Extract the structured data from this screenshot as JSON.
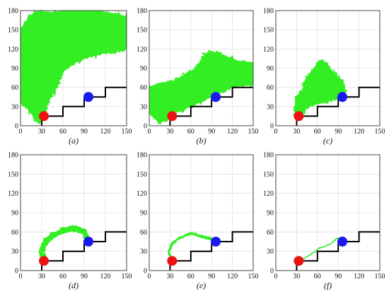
{
  "figure": {
    "colors": {
      "exploration": "#33ee22",
      "path": "#33ee22",
      "start": "#ee1111",
      "goal": "#1a1aee",
      "obstacle": "#000000",
      "frame": "#333333",
      "grid": "#d8d8d8"
    }
  },
  "chart_data": [
    {
      "type": "scatter",
      "label": "(a)",
      "xlim": [
        0,
        150
      ],
      "ylim": [
        0,
        180
      ],
      "xticks": [
        0,
        30,
        60,
        90,
        120,
        150
      ],
      "yticks": [
        0,
        30,
        60,
        90,
        120,
        150,
        180
      ],
      "grid": true,
      "start": [
        33,
        15
      ],
      "goal": [
        96,
        45
      ],
      "obstacle": [
        [
          30,
          0
        ],
        [
          30,
          15
        ],
        [
          60,
          15
        ],
        [
          60,
          30
        ],
        [
          90,
          30
        ],
        [
          90,
          45
        ],
        [
          120,
          45
        ],
        [
          120,
          60
        ],
        [
          150,
          60
        ]
      ],
      "exploration": {
        "kind": "region",
        "coverage": "extensive",
        "outline": [
          [
            33,
            15
          ],
          [
            25,
            5
          ],
          [
            12,
            25
          ],
          [
            0,
            40
          ],
          [
            0,
            150
          ],
          [
            10,
            165
          ],
          [
            22,
            178
          ],
          [
            40,
            176
          ],
          [
            70,
            180
          ],
          [
            100,
            180
          ],
          [
            130,
            175
          ],
          [
            150,
            170
          ],
          [
            150,
            120
          ],
          [
            140,
            118
          ],
          [
            120,
            115
          ],
          [
            95,
            108
          ],
          [
            75,
            98
          ],
          [
            60,
            85
          ],
          [
            52,
            65
          ],
          [
            40,
            40
          ],
          [
            33,
            25
          ]
        ]
      }
    },
    {
      "type": "scatter",
      "label": "(b)",
      "xlim": [
        0,
        150
      ],
      "ylim": [
        0,
        180
      ],
      "xticks": [
        0,
        30,
        60,
        90,
        120,
        150
      ],
      "yticks": [
        0,
        30,
        60,
        90,
        120,
        150,
        180
      ],
      "grid": true,
      "start": [
        33,
        15
      ],
      "goal": [
        96,
        45
      ],
      "obstacle": [
        [
          30,
          0
        ],
        [
          30,
          15
        ],
        [
          60,
          15
        ],
        [
          60,
          30
        ],
        [
          90,
          30
        ],
        [
          90,
          45
        ],
        [
          120,
          45
        ],
        [
          120,
          60
        ],
        [
          150,
          60
        ]
      ],
      "exploration": {
        "kind": "region",
        "coverage": "moderate",
        "outline": [
          [
            33,
            15
          ],
          [
            15,
            5
          ],
          [
            0,
            20
          ],
          [
            0,
            60
          ],
          [
            20,
            65
          ],
          [
            40,
            70
          ],
          [
            55,
            80
          ],
          [
            68,
            90
          ],
          [
            80,
            110
          ],
          [
            92,
            115
          ],
          [
            110,
            108
          ],
          [
            130,
            100
          ],
          [
            150,
            98
          ],
          [
            150,
            65
          ],
          [
            122,
            62
          ],
          [
            92,
            47
          ],
          [
            62,
            32
          ],
          [
            32,
            18
          ]
        ]
      }
    },
    {
      "type": "scatter",
      "label": "(c)",
      "xlim": [
        0,
        150
      ],
      "ylim": [
        0,
        180
      ],
      "xticks": [
        0,
        30,
        60,
        90,
        120,
        150
      ],
      "yticks": [
        0,
        30,
        60,
        90,
        120,
        150,
        180
      ],
      "grid": true,
      "start": [
        33,
        15
      ],
      "goal": [
        96,
        45
      ],
      "obstacle": [
        [
          30,
          0
        ],
        [
          30,
          15
        ],
        [
          60,
          15
        ],
        [
          60,
          30
        ],
        [
          90,
          30
        ],
        [
          90,
          45
        ],
        [
          120,
          45
        ],
        [
          120,
          60
        ],
        [
          150,
          60
        ]
      ],
      "exploration": {
        "kind": "region",
        "coverage": "small",
        "outline": [
          [
            33,
            15
          ],
          [
            27,
            25
          ],
          [
            30,
            40
          ],
          [
            40,
            55
          ],
          [
            45,
            75
          ],
          [
            55,
            88
          ],
          [
            65,
            100
          ],
          [
            75,
            92
          ],
          [
            85,
            80
          ],
          [
            95,
            70
          ],
          [
            100,
            55
          ],
          [
            96,
            45
          ],
          [
            70,
            38
          ],
          [
            50,
            32
          ],
          [
            38,
            22
          ]
        ]
      }
    },
    {
      "type": "scatter",
      "label": "(d)",
      "xlim": [
        0,
        150
      ],
      "ylim": [
        0,
        180
      ],
      "xticks": [
        0,
        30,
        60,
        90,
        120,
        150
      ],
      "yticks": [
        0,
        30,
        60,
        90,
        120,
        150,
        180
      ],
      "grid": true,
      "start": [
        33,
        15
      ],
      "goal": [
        96,
        45
      ],
      "obstacle": [
        [
          30,
          0
        ],
        [
          30,
          15
        ],
        [
          60,
          15
        ],
        [
          60,
          30
        ],
        [
          90,
          30
        ],
        [
          90,
          45
        ],
        [
          120,
          45
        ],
        [
          120,
          60
        ],
        [
          150,
          60
        ]
      ],
      "exploration": {
        "kind": "band",
        "coverage": "narrow",
        "path": [
          [
            33,
            15
          ],
          [
            30,
            30
          ],
          [
            35,
            45
          ],
          [
            45,
            55
          ],
          [
            60,
            62
          ],
          [
            75,
            66
          ],
          [
            90,
            60
          ],
          [
            96,
            45
          ]
        ],
        "width": 8
      }
    },
    {
      "type": "scatter",
      "label": "(e)",
      "xlim": [
        0,
        150
      ],
      "ylim": [
        0,
        180
      ],
      "xticks": [
        0,
        30,
        60,
        90,
        120,
        150
      ],
      "yticks": [
        0,
        30,
        60,
        90,
        120,
        150,
        180
      ],
      "grid": true,
      "start": [
        33,
        15
      ],
      "goal": [
        96,
        45
      ],
      "obstacle": [
        [
          30,
          0
        ],
        [
          30,
          15
        ],
        [
          60,
          15
        ],
        [
          60,
          30
        ],
        [
          90,
          30
        ],
        [
          90,
          45
        ],
        [
          120,
          45
        ],
        [
          120,
          60
        ],
        [
          150,
          60
        ]
      ],
      "exploration": {
        "kind": "line",
        "coverage": "thin",
        "path": [
          [
            33,
            15
          ],
          [
            28,
            28
          ],
          [
            32,
            40
          ],
          [
            40,
            48
          ],
          [
            50,
            53
          ],
          [
            60,
            58
          ],
          [
            68,
            56
          ],
          [
            78,
            52
          ],
          [
            88,
            50
          ],
          [
            96,
            45
          ]
        ],
        "width": 2
      }
    },
    {
      "type": "line",
      "label": "(f)",
      "xlim": [
        0,
        150
      ],
      "ylim": [
        0,
        180
      ],
      "xticks": [
        0,
        30,
        60,
        90,
        120,
        150
      ],
      "yticks": [
        0,
        30,
        60,
        90,
        120,
        150,
        180
      ],
      "grid": true,
      "start": [
        33,
        15
      ],
      "goal": [
        96,
        45
      ],
      "obstacle": [
        [
          30,
          0
        ],
        [
          30,
          15
        ],
        [
          60,
          15
        ],
        [
          60,
          30
        ],
        [
          90,
          30
        ],
        [
          90,
          45
        ],
        [
          120,
          45
        ],
        [
          120,
          60
        ],
        [
          150,
          60
        ]
      ],
      "exploration": {
        "kind": "line",
        "coverage": "path",
        "path": [
          [
            33,
            15
          ],
          [
            45,
            22
          ],
          [
            55,
            28
          ],
          [
            62,
            35
          ],
          [
            72,
            38
          ],
          [
            80,
            42
          ],
          [
            88,
            50
          ],
          [
            92,
            50
          ],
          [
            96,
            45
          ]
        ],
        "width": 1.5
      }
    }
  ]
}
